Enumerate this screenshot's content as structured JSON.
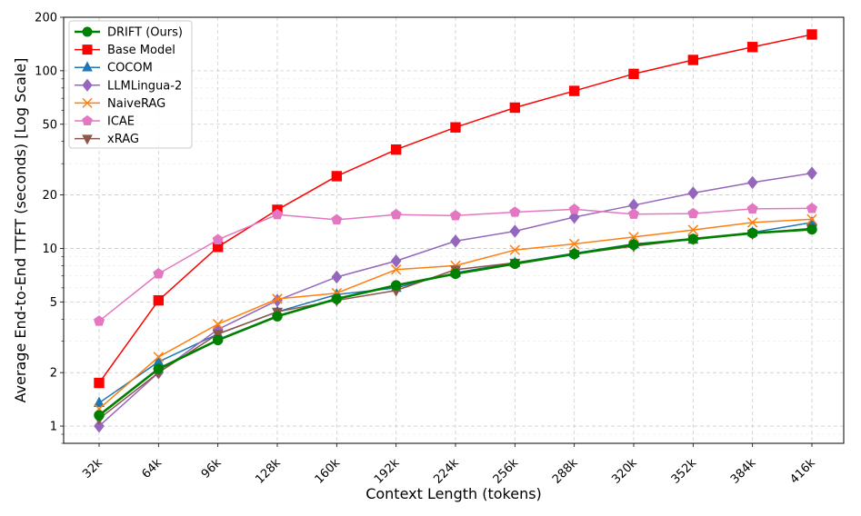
{
  "chart_data": {
    "type": "line",
    "xlabel": "Context Length (tokens)",
    "ylabel": "Average End-to-End TTFT (seconds) [Log Scale]",
    "categories": [
      "32k",
      "64k",
      "96k",
      "128k",
      "160k",
      "192k",
      "224k",
      "256k",
      "288k",
      "320k",
      "352k",
      "384k",
      "416k"
    ],
    "y_scale": "log",
    "ylim": [
      0.8,
      200
    ],
    "yticks": [
      1,
      2,
      5,
      10,
      20,
      50,
      100,
      200
    ],
    "yticklabels": [
      "1",
      "2",
      "5",
      "10",
      "20",
      "50",
      "100",
      "200"
    ],
    "grid": true,
    "legend_position": "top-left",
    "series": [
      {
        "name": "DRIFT (Ours)",
        "color": "#008000",
        "marker": "circle",
        "values": [
          1.15,
          2.1,
          3.05,
          4.15,
          5.2,
          6.2,
          7.2,
          8.2,
          9.3,
          10.5,
          11.3,
          12.2,
          12.8
        ]
      },
      {
        "name": "Base Model",
        "color": "#ff0000",
        "marker": "square",
        "values": [
          1.75,
          5.1,
          10.2,
          16.5,
          25.5,
          36,
          48,
          62,
          77,
          96,
          115,
          136,
          160
        ]
      },
      {
        "name": "COCOM",
        "color": "#1f77b4",
        "marker": "triangle-up",
        "values": [
          1.35,
          2.3,
          3.3,
          4.4,
          5.5,
          6.0,
          7.3,
          8.3,
          9.4,
          10.6,
          11.2,
          12.3,
          14.0
        ]
      },
      {
        "name": "LLMLingua-2",
        "color": "#9467bd",
        "marker": "diamond",
        "values": [
          1.0,
          2.0,
          3.5,
          5.1,
          6.9,
          8.5,
          11.0,
          12.5,
          15.0,
          17.5,
          20.5,
          23.5,
          26.5
        ]
      },
      {
        "name": "NaiveRAG",
        "color": "#ff7f0e",
        "marker": "x",
        "values": [
          1.25,
          2.45,
          3.75,
          5.2,
          5.6,
          7.6,
          8.0,
          9.8,
          10.6,
          11.6,
          12.7,
          14.0,
          14.6
        ]
      },
      {
        "name": "ICAE",
        "color": "#e377c2",
        "marker": "pentagon",
        "values": [
          3.9,
          7.2,
          11.2,
          15.5,
          14.5,
          15.5,
          15.3,
          16.0,
          16.6,
          15.6,
          15.7,
          16.7,
          16.8
        ]
      },
      {
        "name": "xRAG",
        "color": "#8c564b",
        "marker": "triangle-down",
        "values": [
          1.1,
          2.0,
          3.3,
          4.4,
          5.1,
          5.8,
          7.6,
          8.3,
          9.3,
          10.3,
          11.3,
          12.1,
          13.0
        ]
      }
    ]
  }
}
